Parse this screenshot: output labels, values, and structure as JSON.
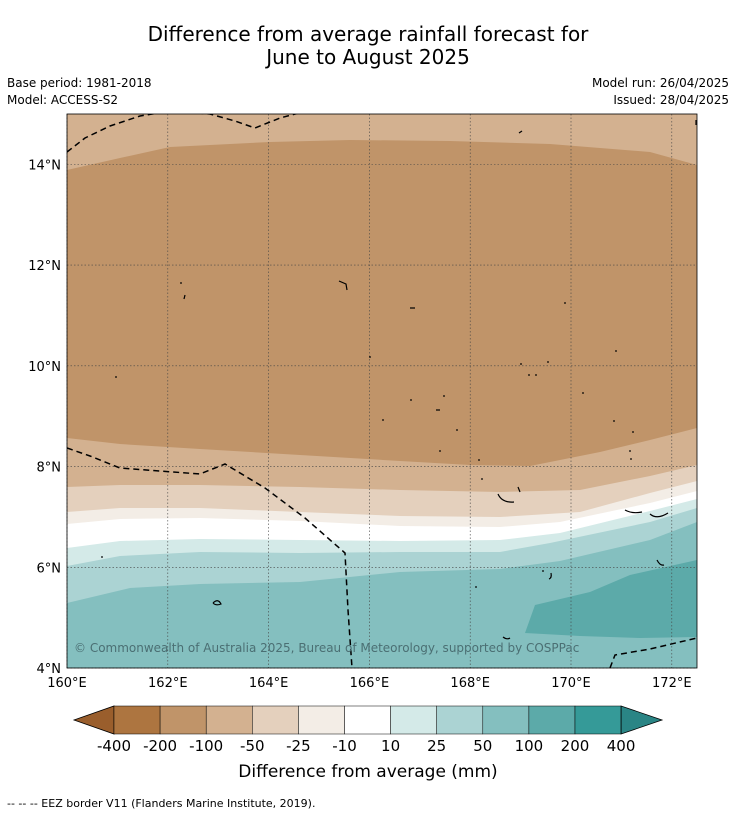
{
  "title_line1": "Difference from average rainfall forecast for",
  "title_line2": "June to August 2025",
  "meta": {
    "base_period": "Base period: 1981-2018",
    "model": "Model: ACCESS-S2",
    "model_run": "Model run: 26/04/2025",
    "issued": "Issued: 28/04/2025"
  },
  "map": {
    "lon_labels": [
      "160°E",
      "162°E",
      "164°E",
      "166°E",
      "168°E",
      "170°E",
      "172°E"
    ],
    "lat_labels": [
      "14°N",
      "12°N",
      "10°N",
      "8°N",
      "6°N",
      "4°N"
    ],
    "lon_range": [
      160,
      172.5
    ],
    "lat_range": [
      4,
      15
    ],
    "copyright": "© Commonwealth of Australia 2025, Bureau of Meteorology, supported by COSPPac"
  },
  "colorbar": {
    "title": "Difference from average (mm)",
    "labels": [
      "-400",
      "-200",
      "-100",
      "-50",
      "-25",
      "-10",
      "10",
      "25",
      "50",
      "100",
      "200",
      "400"
    ],
    "colors": [
      "#9a5e2c",
      "#ad7540",
      "#c09469",
      "#d3b190",
      "#e4d0bd",
      "#f3ede6",
      "#ffffff",
      "#d4eae8",
      "#abd3d3",
      "#84bfbf",
      "#5caaa9",
      "#359a98",
      "#2a8585"
    ]
  },
  "footer": "--  --  -- EEZ border V11 (Flanders Marine Institute, 2019)."
}
